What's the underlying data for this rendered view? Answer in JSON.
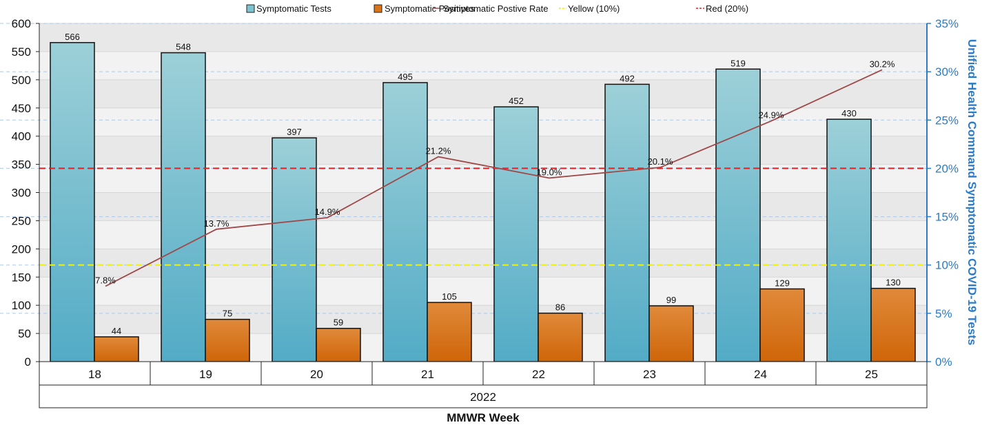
{
  "chart_data": {
    "type": "bar",
    "categories": [
      "18",
      "19",
      "20",
      "21",
      "22",
      "23",
      "24",
      "25"
    ],
    "group_label": "2022",
    "xlabel": "MMWR Week",
    "ylabel": "",
    "y2label": "Unified Health Command Symptomatic COVID-19 Tests",
    "ylim": [
      0,
      600
    ],
    "y_ticks": [
      0,
      50,
      100,
      150,
      200,
      250,
      300,
      350,
      400,
      450,
      500,
      550,
      600
    ],
    "y2lim": [
      0,
      35
    ],
    "y2_ticks": [
      "0%",
      "5%",
      "10%",
      "15%",
      "20%",
      "25%",
      "30%",
      "35%"
    ],
    "series": [
      {
        "name": "Symptomatic Tests",
        "kind": "bar",
        "color": "#5aafc7",
        "values": [
          566,
          548,
          397,
          495,
          452,
          492,
          519,
          430
        ]
      },
      {
        "name": "Symptomatic Positives",
        "kind": "bar",
        "color": "#d46b0a",
        "values": [
          44,
          75,
          59,
          105,
          86,
          99,
          129,
          130
        ]
      },
      {
        "name": "Symptomatic Postive Rate",
        "kind": "line",
        "axis": "right",
        "color": "#a04848",
        "values": [
          7.8,
          13.7,
          14.9,
          21.2,
          19.0,
          20.1,
          24.9,
          30.2
        ],
        "labels": [
          "7.8%",
          "13.7%",
          "14.9%",
          "21.2%",
          "19.0%",
          "20.1%",
          "24.9%",
          "30.2%"
        ]
      }
    ],
    "reference_lines": [
      {
        "name": "Yellow (10%)",
        "value": 10,
        "color": "#f2f200"
      },
      {
        "name": "Red (20%)",
        "value": 20,
        "color": "#e62020"
      }
    ],
    "grid": true,
    "legend_position": "top"
  },
  "colors": {
    "axis_accent": "#2a7bc8",
    "band_dark": "#e8e8e8",
    "band_light": "#f2f2f2"
  }
}
